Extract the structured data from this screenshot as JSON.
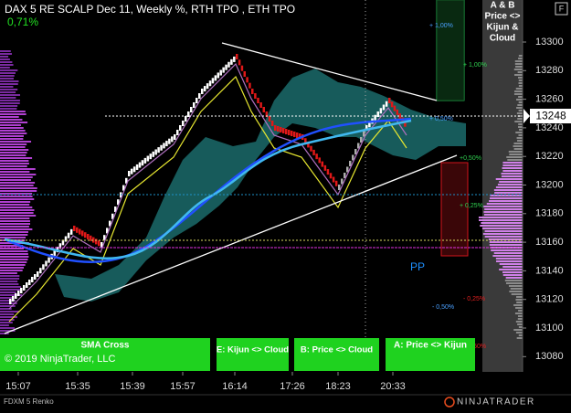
{
  "header": {
    "title": "DAX 5 RE SCALP Dec 11, Weekly %, RTH TPO , ETH TPO",
    "change": "0,71%"
  },
  "legend_box": {
    "lines": [
      "A & B",
      "Price <>",
      "Kijun &",
      "Cloud"
    ]
  },
  "price_axis": {
    "ticks": [
      "13300",
      "13280",
      "13260",
      "13240",
      "13220",
      "13200",
      "13180",
      "13160",
      "13140",
      "13120",
      "13100",
      "13080"
    ],
    "current": "13248"
  },
  "time_axis": {
    "labels": [
      "15:07",
      "15:35",
      "15:39",
      "15:57",
      "16:14",
      "17:26",
      "18:23",
      "20:33"
    ]
  },
  "percent_labels": [
    "+ 1,00%",
    "+ 1,00%",
    "+ 0,50%",
    "+0,50%",
    "+ 0,25%",
    "- 0,25%",
    "- 0,50%",
    "- 0,50%"
  ],
  "pivot": "PP",
  "buttons": [
    "SMA  Cross",
    "E: Kijun <> Cloud",
    "B: Price <> Cloud",
    "A: Price <> Kijun"
  ],
  "copyright": "© 2019 NinjaTrader, LLC",
  "footer": {
    "instrument": "FDXM 5 Renko",
    "brand": "NINJATRADER"
  }
}
